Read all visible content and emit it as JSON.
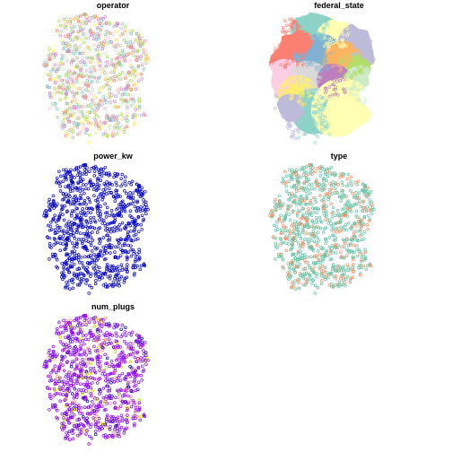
{
  "panels": [
    {
      "id": "operator",
      "title": "operator",
      "style": "categorical",
      "palette": [
        "#8dd3c7",
        "#ffffb3",
        "#bebada",
        "#fb8072",
        "#80b1d3",
        "#fdb462",
        "#b3de69",
        "#fccde5",
        "#d9d9d9",
        "#bc80bd",
        "#ccebc5",
        "#ffed6f",
        "#e78ac3",
        "#a6d854"
      ]
    },
    {
      "id": "federal_state",
      "title": "federal_state",
      "style": "regions",
      "palette": [
        "#8dd3c7",
        "#ffffb3",
        "#bebada",
        "#fb8072",
        "#80b1d3",
        "#fdb462",
        "#b3de69",
        "#fccde5",
        "#d9d9d9",
        "#bc80bd",
        "#ccebc5",
        "#ffed6f",
        "#8dd3c7",
        "#ffffb3",
        "#bebada",
        "#fb8072"
      ]
    },
    {
      "id": "power_kw",
      "title": "power_kw",
      "style": "continuous",
      "palette": [
        "#0000c8",
        "#0000b4",
        "#0000d8",
        "#1010c0"
      ]
    },
    {
      "id": "type",
      "title": "type",
      "style": "two-class",
      "palette": [
        "#66c2a5",
        "#fc8d62"
      ]
    },
    {
      "id": "num_plugs",
      "title": "num_plugs",
      "style": "continuous-mixed",
      "palette": [
        "#8a00ff",
        "#9b00ff",
        "#7a10ee",
        "#0d0087",
        "#ff7f6e",
        "#c9d400"
      ]
    }
  ]
}
